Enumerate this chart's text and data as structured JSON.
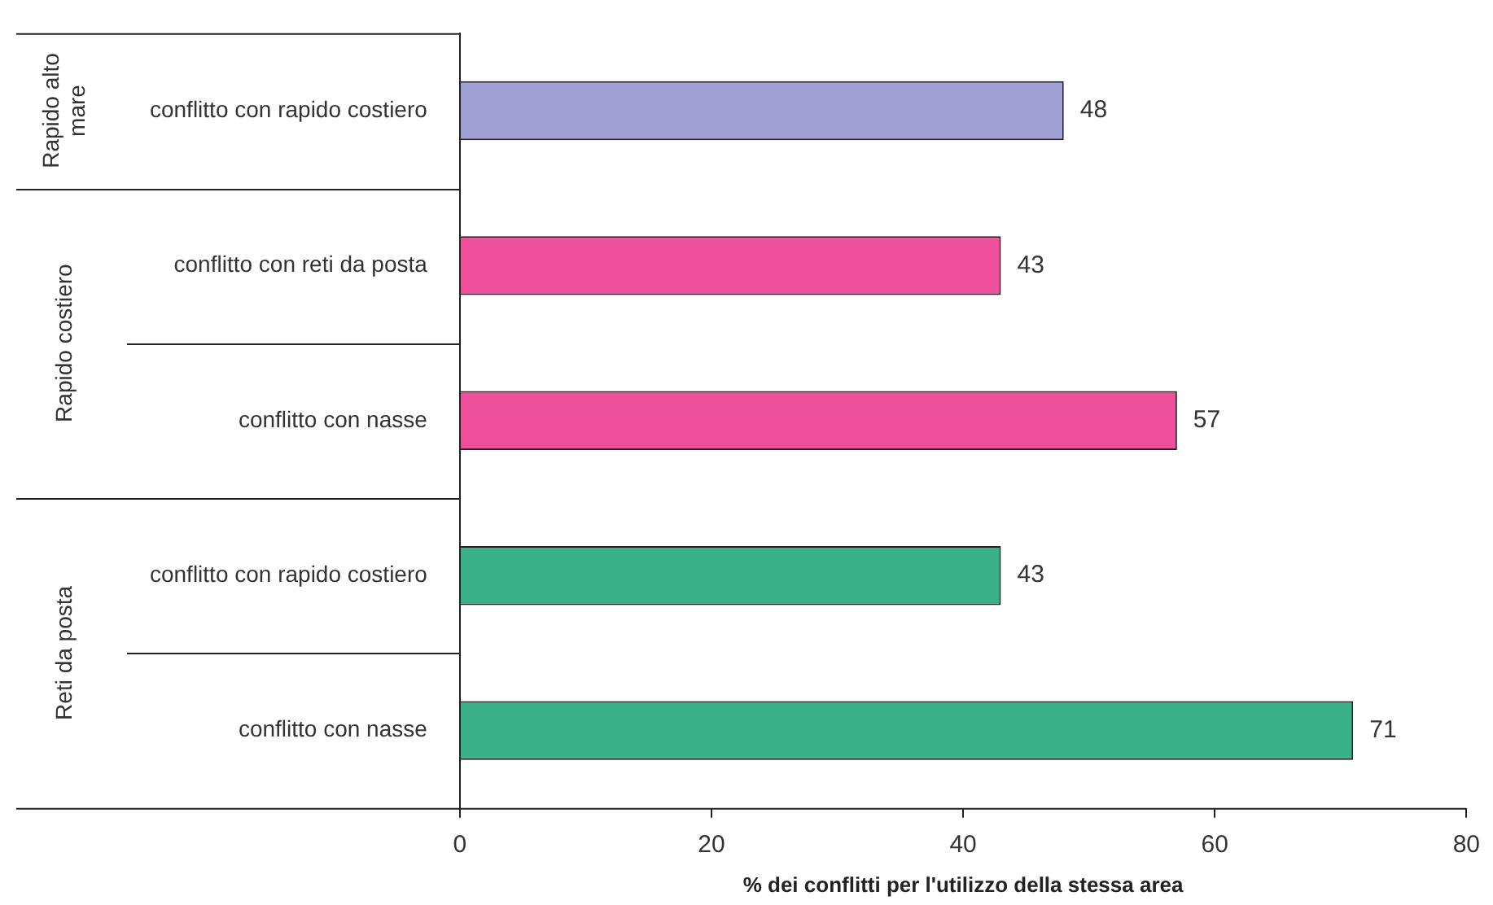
{
  "chart_data": {
    "type": "bar",
    "orientation": "horizontal",
    "xlabel": "% dei conflitti per l'utilizzo della stessa area",
    "categories": [
      "conflitto con rapido costiero",
      "conflitto con reti da posta",
      "conflitto con nasse",
      "conflitto con rapido costiero",
      "conflitto con nasse"
    ],
    "values": [
      48,
      43,
      57,
      43,
      71
    ],
    "colors": [
      "#a0a0d4",
      "#ee4f9a",
      "#ee4f9a",
      "#3ab088",
      "#3ab088"
    ],
    "xlim": [
      0,
      80
    ],
    "xticks": [
      0,
      20,
      40,
      60,
      80
    ],
    "grid": false,
    "legend": false,
    "data_labels": true,
    "annotations": [
      "Rapido alto mare",
      "Rapido costiero",
      "Reti da posta"
    ]
  }
}
